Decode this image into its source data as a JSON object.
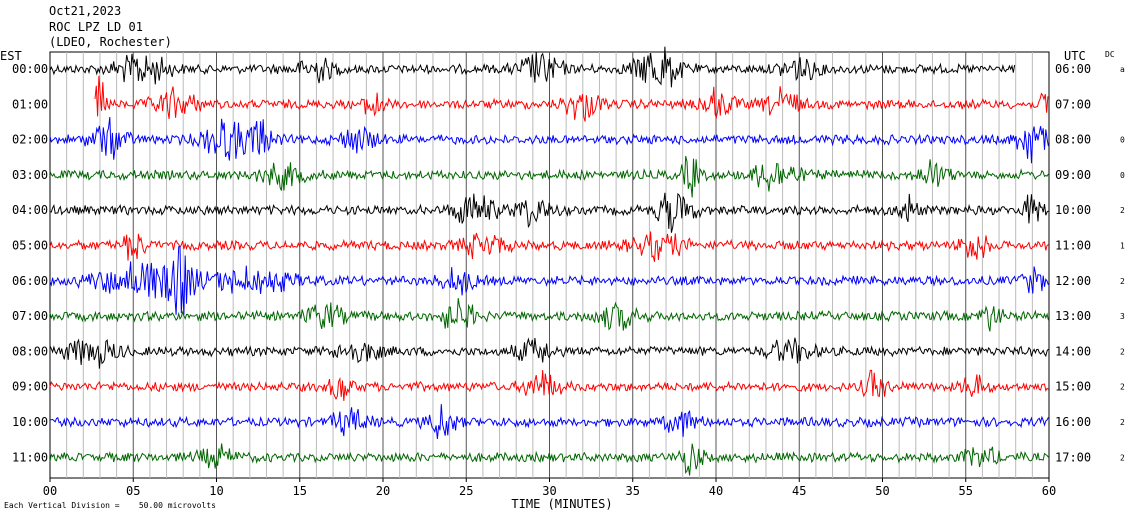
{
  "header": {
    "date": "Oct21,2023",
    "station": "ROC LPZ LD 01",
    "network": "(LDEO, Rochester)"
  },
  "chart_data": {
    "type": "line",
    "title": "ROC LPZ LD 01",
    "xlabel": "TIME (MINUTES)",
    "xlim": [
      0,
      60
    ],
    "x_ticks": [
      "00",
      "05",
      "10",
      "15",
      "20",
      "25",
      "30",
      "35",
      "40",
      "45",
      "50",
      "55",
      "60"
    ],
    "left_axis_label": "EST",
    "right_axis_label": "UTC",
    "dc_label": "DC",
    "grid": "vertical lines every minute",
    "scale_note": "Each Vertical Division =    50.00 microvolts",
    "trace_colors": [
      "#000000",
      "#ff0000",
      "#0000ff",
      "#006600"
    ],
    "rows": [
      {
        "est": "00:00",
        "utc": "06:00",
        "dc": "a",
        "start": 0,
        "end": 58,
        "bursts": [
          [
            5.5,
            1.5,
            0.8
          ],
          [
            16,
            1,
            0.6
          ],
          [
            29.5,
            1.2,
            0.8
          ],
          [
            36.5,
            1.2,
            1.3
          ],
          [
            45,
            1,
            0.7
          ]
        ]
      },
      {
        "est": "01:00",
        "utc": "07:00",
        "dc": "",
        "start": 2.7,
        "end": 60,
        "bursts": [
          [
            3,
            0.3,
            1.4
          ],
          [
            7.5,
            1.2,
            0.7
          ],
          [
            19.5,
            0.5,
            1.1
          ],
          [
            32,
            1,
            0.8
          ],
          [
            40,
            1,
            0.7
          ],
          [
            44,
            1,
            0.7
          ],
          [
            60,
            0.4,
            1.3
          ]
        ]
      },
      {
        "est": "02:00",
        "utc": "08:00",
        "dc": "0",
        "start": 0,
        "end": 60,
        "bursts": [
          [
            3.5,
            1,
            0.9
          ],
          [
            10.5,
            1.2,
            1.1
          ],
          [
            12.5,
            0.8,
            1.0
          ],
          [
            18.5,
            1,
            0.7
          ],
          [
            59,
            0.8,
            1.2
          ]
        ]
      },
      {
        "est": "03:00",
        "utc": "09:00",
        "dc": "0",
        "start": 0,
        "end": 60,
        "bursts": [
          [
            14,
            1.2,
            0.6
          ],
          [
            38.5,
            0.5,
            1.1
          ],
          [
            43.5,
            1.2,
            0.9
          ],
          [
            53,
            0.8,
            0.7
          ]
        ]
      },
      {
        "est": "04:00",
        "utc": "10:00",
        "dc": "2",
        "start": 0,
        "end": 60,
        "bursts": [
          [
            25.5,
            1.2,
            0.8
          ],
          [
            29,
            1,
            0.7
          ],
          [
            37.5,
            1,
            1.0
          ],
          [
            51.5,
            0.6,
            0.7
          ],
          [
            59,
            0.6,
            0.7
          ]
        ]
      },
      {
        "est": "05:00",
        "utc": "11:00",
        "dc": "1",
        "start": 0,
        "end": 60,
        "bursts": [
          [
            5,
            0.6,
            0.8
          ],
          [
            26,
            1.2,
            0.6
          ],
          [
            36.5,
            1.5,
            0.6
          ],
          [
            55.5,
            0.7,
            0.9
          ]
        ]
      },
      {
        "est": "06:00",
        "utc": "12:00",
        "dc": "2",
        "start": 0,
        "end": 60,
        "bursts": [
          [
            7.8,
            0.6,
            2.4
          ],
          [
            5.5,
            2.5,
            0.9
          ],
          [
            12,
            2.5,
            0.6
          ],
          [
            24.5,
            1,
            0.6
          ],
          [
            59,
            0.6,
            0.7
          ]
        ]
      },
      {
        "est": "07:00",
        "utc": "13:00",
        "dc": "3",
        "start": 0,
        "end": 60,
        "bursts": [
          [
            16.5,
            1,
            0.7
          ],
          [
            24.5,
            1,
            0.8
          ],
          [
            34,
            1.2,
            0.6
          ],
          [
            56.5,
            0.6,
            0.6
          ]
        ]
      },
      {
        "est": "08:00",
        "utc": "14:00",
        "dc": "2",
        "start": 0,
        "end": 60,
        "bursts": [
          [
            2.5,
            1.5,
            0.7
          ],
          [
            18.5,
            1.2,
            0.6
          ],
          [
            29,
            1,
            0.6
          ],
          [
            44.5,
            1.2,
            0.6
          ]
        ]
      },
      {
        "est": "09:00",
        "utc": "15:00",
        "dc": "2",
        "start": 0,
        "end": 60,
        "bursts": [
          [
            17.5,
            0.6,
            0.8
          ],
          [
            29.5,
            1,
            0.7
          ],
          [
            49.5,
            0.6,
            0.8
          ],
          [
            55.5,
            0.6,
            0.7
          ]
        ]
      },
      {
        "est": "10:00",
        "utc": "16:00",
        "dc": "2",
        "start": 0,
        "end": 60,
        "bursts": [
          [
            23.5,
            0.8,
            0.9
          ],
          [
            18,
            1,
            0.6
          ],
          [
            38,
            1,
            0.6
          ]
        ]
      },
      {
        "est": "11:00",
        "utc": "17:00",
        "dc": "2",
        "start": 0,
        "end": 60,
        "bursts": [
          [
            38.5,
            0.6,
            0.8
          ],
          [
            10,
            1,
            0.5
          ],
          [
            56,
            1,
            0.5
          ]
        ]
      }
    ]
  }
}
